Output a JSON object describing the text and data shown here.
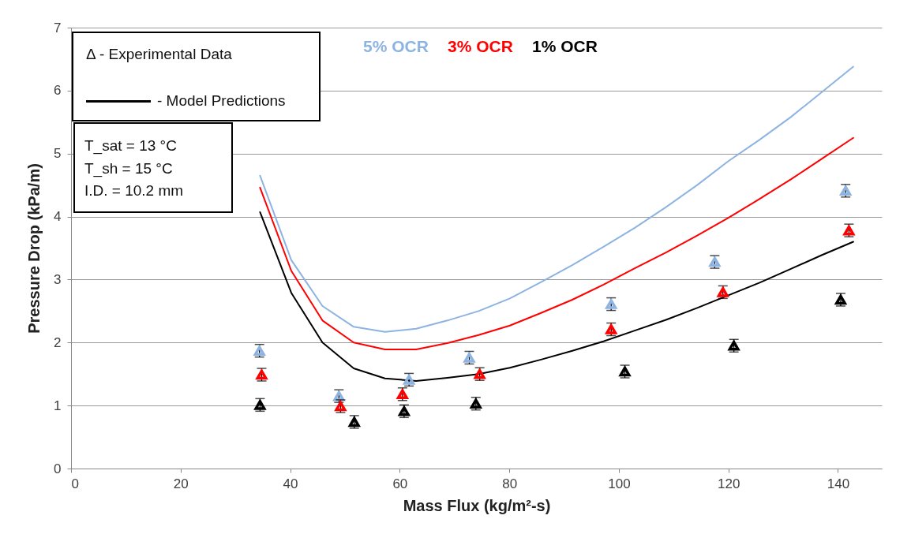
{
  "chart_data": {
    "type": "line",
    "xlabel": "Mass Flux (kg/m²-s)",
    "ylabel": "Pressure Drop (kPa/m)",
    "xlim": [
      0,
      148
    ],
    "xticks": [
      0,
      20,
      40,
      60,
      80,
      100,
      120,
      140
    ],
    "ylim": [
      0,
      7
    ],
    "yticks": [
      0,
      1,
      2,
      3,
      4,
      5,
      6,
      7
    ],
    "grid": "y",
    "annotations": [
      "Δ - Experimental Data",
      "-  Model Predictions",
      "T_sat = 13 °C",
      "T_sh = 15 °C",
      "I.D. = 10.2 mm"
    ],
    "x": [
      34.5,
      40.2,
      45.9,
      51.6,
      57.3,
      63,
      68.7,
      74.4,
      80.1,
      85.8,
      91.5,
      97.2,
      102.9,
      108.6,
      114.3,
      120,
      125.7,
      131.4,
      137.1,
      142.8
    ],
    "series": [
      {
        "name": "5% OCR",
        "type": "line",
        "color": "#8db3e2",
        "values": [
          4.65,
          3.31,
          2.58,
          2.25,
          2.17,
          2.22,
          2.35,
          2.5,
          2.7,
          2.96,
          3.23,
          3.52,
          3.82,
          4.15,
          4.5,
          4.88,
          5.22,
          5.58,
          5.98,
          6.38
        ]
      },
      {
        "name": "3% OCR",
        "type": "line",
        "color": "#ff0000",
        "values": [
          4.46,
          3.14,
          2.35,
          2.0,
          1.89,
          1.89,
          1.99,
          2.12,
          2.27,
          2.47,
          2.68,
          2.92,
          3.18,
          3.43,
          3.7,
          3.98,
          4.28,
          4.59,
          4.92,
          5.25
        ]
      },
      {
        "name": "1% OCR",
        "type": "line",
        "color": "#000000",
        "values": [
          4.07,
          2.79,
          2.0,
          1.59,
          1.43,
          1.39,
          1.44,
          1.5,
          1.6,
          1.73,
          1.87,
          2.02,
          2.19,
          2.36,
          2.55,
          2.75,
          2.95,
          3.17,
          3.39,
          3.6
        ]
      },
      {
        "type": "scatter",
        "marker": "triangle",
        "color": "#8db3e2",
        "x": [
          34.4,
          48.9,
          61.7,
          72.7,
          98.6,
          117.5,
          141.4
        ],
        "values": [
          1.87,
          1.15,
          1.41,
          1.76,
          2.61,
          3.28,
          4.41
        ],
        "errors": [
          0.1,
          0.1,
          0.1,
          0.1,
          0.1,
          0.1,
          0.1
        ]
      },
      {
        "type": "scatter",
        "marker": "triangle",
        "color": "#ff0000",
        "x": [
          34.8,
          49.2,
          60.5,
          74.6,
          98.6,
          119.0,
          142.0
        ],
        "values": [
          1.49,
          0.99,
          1.18,
          1.5,
          2.21,
          2.8,
          3.78
        ],
        "errors": [
          0.1,
          0.1,
          0.1,
          0.1,
          0.1,
          0.1,
          0.1
        ]
      },
      {
        "type": "scatter",
        "marker": "triangle",
        "color": "#000000",
        "x": [
          34.5,
          51.7,
          60.8,
          73.9,
          101.1,
          121.0,
          140.5
        ],
        "values": [
          1.01,
          0.74,
          0.91,
          1.03,
          1.54,
          1.95,
          2.68
        ],
        "errors": [
          0.1,
          0.1,
          0.1,
          0.1,
          0.1,
          0.1,
          0.1
        ]
      }
    ]
  }
}
